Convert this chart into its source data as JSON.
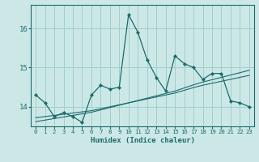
{
  "xlabel": "Humidex (Indice chaleur)",
  "background_color": "#cce8e6",
  "grid_color": "#9fcfcc",
  "line_color": "#1a6b6b",
  "x_values": [
    0,
    1,
    2,
    3,
    4,
    5,
    6,
    7,
    8,
    9,
    10,
    11,
    12,
    13,
    14,
    15,
    16,
    17,
    18,
    19,
    20,
    21,
    22,
    23
  ],
  "main_line": [
    14.3,
    14.1,
    13.75,
    13.85,
    13.75,
    13.6,
    14.3,
    14.55,
    14.45,
    14.5,
    16.35,
    15.9,
    15.2,
    14.75,
    14.4,
    15.3,
    15.1,
    15.0,
    14.7,
    14.85,
    14.85,
    14.15,
    14.1,
    14.0
  ],
  "trend_line1": [
    13.72,
    13.75,
    13.78,
    13.81,
    13.84,
    13.87,
    13.9,
    13.95,
    14.0,
    14.05,
    14.1,
    14.15,
    14.2,
    14.25,
    14.3,
    14.35,
    14.42,
    14.49,
    14.55,
    14.6,
    14.65,
    14.7,
    14.75,
    14.8
  ],
  "trend_line2": [
    13.62,
    13.66,
    13.7,
    13.74,
    13.78,
    13.82,
    13.86,
    13.92,
    13.98,
    14.04,
    14.1,
    14.16,
    14.22,
    14.28,
    14.34,
    14.4,
    14.48,
    14.56,
    14.63,
    14.69,
    14.75,
    14.81,
    14.87,
    14.93
  ],
  "ylim": [
    13.5,
    16.6
  ],
  "yticks": [
    14,
    15,
    16
  ],
  "xticks": [
    0,
    1,
    2,
    3,
    4,
    5,
    6,
    7,
    8,
    9,
    10,
    11,
    12,
    13,
    14,
    15,
    16,
    17,
    18,
    19,
    20,
    21,
    22,
    23
  ]
}
